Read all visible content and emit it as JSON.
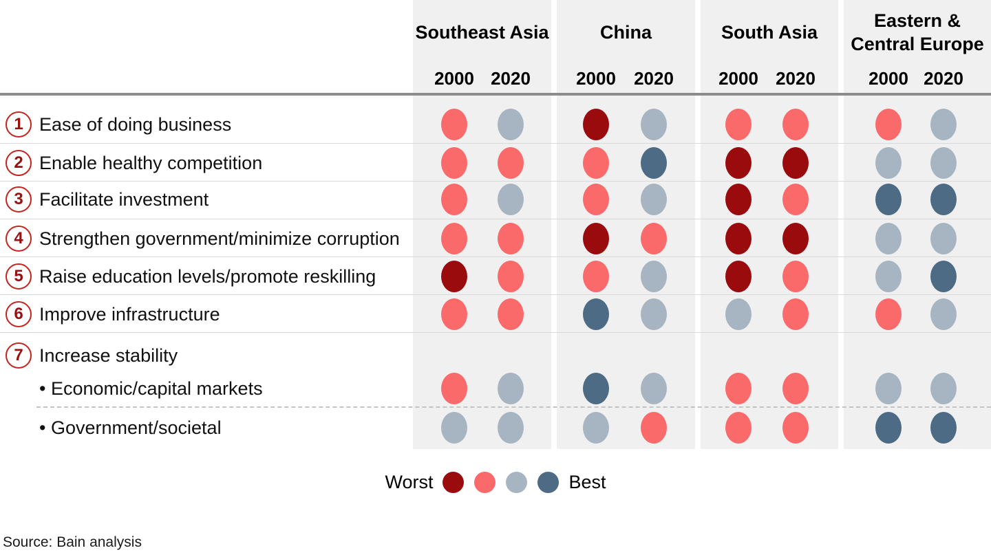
{
  "palette": {
    "worst": "#9a0b0e",
    "poor": "#fb6a6a",
    "fair": "#a6b5c1",
    "best": "#4d6b84",
    "column_bg": "#f0f0f0",
    "header_rule": "#8c8c8c",
    "row_rule": "#d9d9d9",
    "number_circle": "#c5231b",
    "number_text": "#971111"
  },
  "header": {
    "regions": [
      {
        "name": "Southeast Asia",
        "years": [
          "2000",
          "2020"
        ]
      },
      {
        "name": "China",
        "years": [
          "2000",
          "2020"
        ]
      },
      {
        "name": "South Asia",
        "years": [
          "2000",
          "2020"
        ]
      },
      {
        "name": "Eastern & Central Europe",
        "years": [
          "2000",
          "2020"
        ]
      }
    ]
  },
  "rows": [
    {
      "num": "1",
      "bullet": false,
      "label": "Ease of doing business",
      "dots": [
        [
          "poor",
          "fair"
        ],
        [
          "worst",
          "fair"
        ],
        [
          "poor",
          "poor"
        ],
        [
          "poor",
          "fair"
        ]
      ]
    },
    {
      "num": "2",
      "bullet": false,
      "label": "Enable healthy competition",
      "dots": [
        [
          "poor",
          "poor"
        ],
        [
          "poor",
          "best"
        ],
        [
          "worst",
          "worst"
        ],
        [
          "fair",
          "fair"
        ]
      ]
    },
    {
      "num": "3",
      "bullet": false,
      "label": "Facilitate investment",
      "dots": [
        [
          "poor",
          "fair"
        ],
        [
          "poor",
          "fair"
        ],
        [
          "worst",
          "poor"
        ],
        [
          "best",
          "best"
        ]
      ]
    },
    {
      "num": "4",
      "bullet": false,
      "label": "Strengthen government/minimize corruption",
      "dots": [
        [
          "poor",
          "poor"
        ],
        [
          "worst",
          "poor"
        ],
        [
          "worst",
          "worst"
        ],
        [
          "fair",
          "fair"
        ]
      ]
    },
    {
      "num": "5",
      "bullet": false,
      "label": "Raise education levels/promote reskilling",
      "dots": [
        [
          "worst",
          "poor"
        ],
        [
          "poor",
          "fair"
        ],
        [
          "worst",
          "poor"
        ],
        [
          "fair",
          "best"
        ]
      ]
    },
    {
      "num": "6",
      "bullet": false,
      "label": "Improve infrastructure",
      "dots": [
        [
          "poor",
          "poor"
        ],
        [
          "best",
          "fair"
        ],
        [
          "fair",
          "poor"
        ],
        [
          "poor",
          "fair"
        ]
      ]
    },
    {
      "num": "7",
      "bullet": false,
      "label": "Increase stability",
      "dots": null
    },
    {
      "num": "",
      "bullet": true,
      "label": "Economic/capital markets",
      "dots": [
        [
          "poor",
          "fair"
        ],
        [
          "best",
          "fair"
        ],
        [
          "poor",
          "poor"
        ],
        [
          "fair",
          "fair"
        ]
      ]
    },
    {
      "num": "",
      "bullet": true,
      "label": "Government/societal",
      "dots": [
        [
          "fair",
          "fair"
        ],
        [
          "fair",
          "poor"
        ],
        [
          "poor",
          "poor"
        ],
        [
          "best",
          "best"
        ]
      ]
    }
  ],
  "legend": {
    "worst_label": "Worst",
    "best_label": "Best",
    "scale": [
      "worst",
      "poor",
      "fair",
      "best"
    ]
  },
  "source": "Source: Bain analysis",
  "chart_data": {
    "type": "heatmap",
    "title": "",
    "columns": [
      "Southeast Asia 2000",
      "Southeast Asia 2020",
      "China 2000",
      "China 2020",
      "South Asia 2000",
      "South Asia 2020",
      "Eastern & Central Europe 2000",
      "Eastern & Central Europe 2020"
    ],
    "rows": [
      "Ease of doing business",
      "Enable healthy competition",
      "Facilitate investment",
      "Strengthen government/minimize corruption",
      "Raise education levels/promote reskilling",
      "Improve infrastructure",
      "Increase stability - Economic/capital markets",
      "Increase stability - Government/societal"
    ],
    "values": [
      [
        "poor",
        "fair",
        "worst",
        "fair",
        "poor",
        "poor",
        "poor",
        "fair"
      ],
      [
        "poor",
        "poor",
        "poor",
        "best",
        "worst",
        "worst",
        "fair",
        "fair"
      ],
      [
        "poor",
        "fair",
        "poor",
        "fair",
        "worst",
        "poor",
        "best",
        "best"
      ],
      [
        "poor",
        "poor",
        "worst",
        "poor",
        "worst",
        "worst",
        "fair",
        "fair"
      ],
      [
        "worst",
        "poor",
        "poor",
        "fair",
        "worst",
        "poor",
        "fair",
        "best"
      ],
      [
        "poor",
        "poor",
        "best",
        "fair",
        "fair",
        "poor",
        "poor",
        "fair"
      ],
      [
        "poor",
        "fair",
        "best",
        "fair",
        "poor",
        "poor",
        "fair",
        "fair"
      ],
      [
        "fair",
        "fair",
        "fair",
        "poor",
        "poor",
        "poor",
        "best",
        "best"
      ]
    ],
    "scale_order": [
      "worst",
      "poor",
      "fair",
      "best"
    ],
    "legend": {
      "min_label": "Worst",
      "max_label": "Best"
    },
    "source": "Source: Bain analysis"
  }
}
